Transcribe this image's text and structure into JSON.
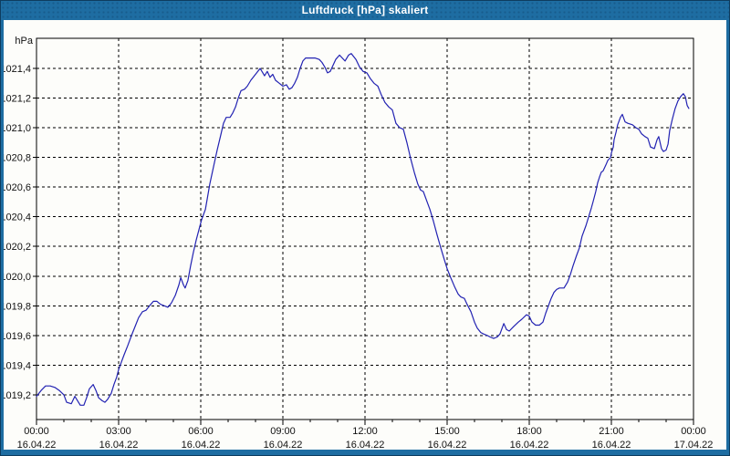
{
  "window": {
    "title": "Luftdruck [hPa] skaliert"
  },
  "colors": {
    "titlebar_bg": "#1e6da2",
    "window_border": "#0e3c5f",
    "plot_bg": "#fdfdfa",
    "grid_color": "#000000",
    "axis_color": "#000000",
    "line_color": "#2222b2",
    "label_color": "#111111",
    "title_text_color": "#ffffff"
  },
  "chart_data": {
    "type": "line",
    "title": "Luftdruck [hPa] skaliert",
    "y_unit_label": "hPa",
    "xlabel": "",
    "ylabel": "hPa",
    "grid": true,
    "legend": "none",
    "xlim_hours": [
      0,
      24
    ],
    "ylim": [
      1019.03,
      1021.6
    ],
    "x_minor_step_hours": 1,
    "x_major_step_hours": 3,
    "y_ticks": [
      1021.4,
      1021.2,
      1021.0,
      1020.8,
      1020.6,
      1020.4,
      1020.2,
      1020.0,
      1019.8,
      1019.6,
      1019.4,
      1019.2
    ],
    "y_tick_labels": [
      "1021,4",
      "1021,2",
      "1021,0",
      "1020,8",
      "1020,6",
      "1020,4",
      "1020,2",
      "1020,0",
      "1019,8",
      "1019,6",
      "1019,4",
      "1019,2"
    ],
    "x_ticks": [
      {
        "hour": 0,
        "time": "00:00",
        "date": "16.04.22"
      },
      {
        "hour": 3,
        "time": "03:00",
        "date": "16.04.22"
      },
      {
        "hour": 6,
        "time": "06:00",
        "date": "16.04.22"
      },
      {
        "hour": 9,
        "time": "09:00",
        "date": "16.04.22"
      },
      {
        "hour": 12,
        "time": "12:00",
        "date": "16.04.22"
      },
      {
        "hour": 15,
        "time": "15:00",
        "date": "16.04.22"
      },
      {
        "hour": 18,
        "time": "18:00",
        "date": "16.04.22"
      },
      {
        "hour": 21,
        "time": "21:00",
        "date": "16.04.22"
      },
      {
        "hour": 24,
        "time": "00:00",
        "date": "17.04.22"
      }
    ],
    "series": [
      {
        "name": "Luftdruck",
        "color": "#2222b2",
        "points": [
          [
            0.0,
            1019.19
          ],
          [
            0.17,
            1019.23
          ],
          [
            0.33,
            1019.26
          ],
          [
            0.5,
            1019.26
          ],
          [
            0.67,
            1019.25
          ],
          [
            0.83,
            1019.23
          ],
          [
            1.0,
            1019.2
          ],
          [
            1.1,
            1019.15
          ],
          [
            1.27,
            1019.14
          ],
          [
            1.4,
            1019.19
          ],
          [
            1.5,
            1019.16
          ],
          [
            1.6,
            1019.13
          ],
          [
            1.73,
            1019.13
          ],
          [
            1.83,
            1019.18
          ],
          [
            1.93,
            1019.24
          ],
          [
            2.07,
            1019.27
          ],
          [
            2.17,
            1019.23
          ],
          [
            2.27,
            1019.18
          ],
          [
            2.4,
            1019.16
          ],
          [
            2.5,
            1019.15
          ],
          [
            2.6,
            1019.17
          ],
          [
            2.73,
            1019.21
          ],
          [
            2.83,
            1019.27
          ],
          [
            2.93,
            1019.32
          ],
          [
            3.0,
            1019.37
          ],
          [
            3.1,
            1019.42
          ],
          [
            3.2,
            1019.47
          ],
          [
            3.33,
            1019.53
          ],
          [
            3.47,
            1019.6
          ],
          [
            3.6,
            1019.66
          ],
          [
            3.73,
            1019.72
          ],
          [
            3.87,
            1019.76
          ],
          [
            4.0,
            1019.77
          ],
          [
            4.13,
            1019.8
          ],
          [
            4.27,
            1019.83
          ],
          [
            4.4,
            1019.83
          ],
          [
            4.53,
            1019.81
          ],
          [
            4.67,
            1019.8
          ],
          [
            4.8,
            1019.79
          ],
          [
            4.93,
            1019.82
          ],
          [
            5.07,
            1019.87
          ],
          [
            5.2,
            1019.94
          ],
          [
            5.27,
            1019.99
          ],
          [
            5.37,
            1019.94
          ],
          [
            5.43,
            1019.92
          ],
          [
            5.53,
            1019.97
          ],
          [
            5.63,
            1020.07
          ],
          [
            5.73,
            1020.16
          ],
          [
            5.83,
            1020.24
          ],
          [
            5.93,
            1020.31
          ],
          [
            6.03,
            1020.38
          ],
          [
            6.17,
            1020.45
          ],
          [
            6.33,
            1020.62
          ],
          [
            6.47,
            1020.74
          ],
          [
            6.6,
            1020.85
          ],
          [
            6.73,
            1020.95
          ],
          [
            6.83,
            1021.03
          ],
          [
            6.93,
            1021.07
          ],
          [
            7.07,
            1021.07
          ],
          [
            7.17,
            1021.1
          ],
          [
            7.27,
            1021.14
          ],
          [
            7.37,
            1021.2
          ],
          [
            7.47,
            1021.25
          ],
          [
            7.6,
            1021.26
          ],
          [
            7.7,
            1021.28
          ],
          [
            7.83,
            1021.32
          ],
          [
            8.0,
            1021.36
          ],
          [
            8.17,
            1021.4
          ],
          [
            8.33,
            1021.35
          ],
          [
            8.43,
            1021.38
          ],
          [
            8.53,
            1021.34
          ],
          [
            8.63,
            1021.36
          ],
          [
            8.73,
            1021.32
          ],
          [
            8.87,
            1021.3
          ],
          [
            9.0,
            1021.28
          ],
          [
            9.13,
            1021.29
          ],
          [
            9.23,
            1021.26
          ],
          [
            9.33,
            1021.27
          ],
          [
            9.43,
            1021.3
          ],
          [
            9.53,
            1021.34
          ],
          [
            9.63,
            1021.4
          ],
          [
            9.73,
            1021.45
          ],
          [
            9.83,
            1021.47
          ],
          [
            10.0,
            1021.47
          ],
          [
            10.17,
            1021.47
          ],
          [
            10.33,
            1021.46
          ],
          [
            10.43,
            1021.44
          ],
          [
            10.53,
            1021.41
          ],
          [
            10.63,
            1021.37
          ],
          [
            10.73,
            1021.38
          ],
          [
            10.83,
            1021.42
          ],
          [
            10.93,
            1021.46
          ],
          [
            11.07,
            1021.49
          ],
          [
            11.17,
            1021.47
          ],
          [
            11.27,
            1021.45
          ],
          [
            11.4,
            1021.49
          ],
          [
            11.5,
            1021.5
          ],
          [
            11.67,
            1021.46
          ],
          [
            11.8,
            1021.41
          ],
          [
            11.93,
            1021.38
          ],
          [
            12.07,
            1021.37
          ],
          [
            12.2,
            1021.33
          ],
          [
            12.33,
            1021.3
          ],
          [
            12.47,
            1021.28
          ],
          [
            12.6,
            1021.22
          ],
          [
            12.73,
            1021.17
          ],
          [
            12.87,
            1021.14
          ],
          [
            13.0,
            1021.12
          ],
          [
            13.13,
            1021.03
          ],
          [
            13.27,
            1021.0
          ],
          [
            13.4,
            1020.99
          ],
          [
            13.53,
            1020.9
          ],
          [
            13.67,
            1020.79
          ],
          [
            13.8,
            1020.7
          ],
          [
            13.93,
            1020.62
          ],
          [
            14.03,
            1020.58
          ],
          [
            14.13,
            1020.57
          ],
          [
            14.27,
            1020.5
          ],
          [
            14.37,
            1020.45
          ],
          [
            14.5,
            1020.37
          ],
          [
            14.63,
            1020.28
          ],
          [
            14.77,
            1020.19
          ],
          [
            14.9,
            1020.11
          ],
          [
            15.0,
            1020.05
          ],
          [
            15.13,
            1019.99
          ],
          [
            15.27,
            1019.93
          ],
          [
            15.4,
            1019.88
          ],
          [
            15.5,
            1019.86
          ],
          [
            15.63,
            1019.85
          ],
          [
            15.73,
            1019.81
          ],
          [
            15.87,
            1019.76
          ],
          [
            16.0,
            1019.69
          ],
          [
            16.1,
            1019.65
          ],
          [
            16.23,
            1019.62
          ],
          [
            16.33,
            1019.61
          ],
          [
            16.47,
            1019.6
          ],
          [
            16.57,
            1019.59
          ],
          [
            16.7,
            1019.58
          ],
          [
            16.83,
            1019.59
          ],
          [
            16.93,
            1019.61
          ],
          [
            17.07,
            1019.68
          ],
          [
            17.17,
            1019.64
          ],
          [
            17.27,
            1019.63
          ],
          [
            17.43,
            1019.66
          ],
          [
            17.6,
            1019.69
          ],
          [
            17.73,
            1019.71
          ],
          [
            17.9,
            1019.74
          ],
          [
            18.0,
            1019.73
          ],
          [
            18.1,
            1019.69
          ],
          [
            18.23,
            1019.67
          ],
          [
            18.37,
            1019.67
          ],
          [
            18.5,
            1019.69
          ],
          [
            18.6,
            1019.75
          ],
          [
            18.7,
            1019.8
          ],
          [
            18.8,
            1019.85
          ],
          [
            18.9,
            1019.89
          ],
          [
            19.0,
            1019.91
          ],
          [
            19.1,
            1019.92
          ],
          [
            19.27,
            1019.92
          ],
          [
            19.4,
            1019.96
          ],
          [
            19.5,
            1020.01
          ],
          [
            19.6,
            1020.07
          ],
          [
            19.73,
            1020.14
          ],
          [
            19.83,
            1020.19
          ],
          [
            19.93,
            1020.27
          ],
          [
            20.07,
            1020.34
          ],
          [
            20.17,
            1020.4
          ],
          [
            20.27,
            1020.46
          ],
          [
            20.33,
            1020.5
          ],
          [
            20.43,
            1020.57
          ],
          [
            20.5,
            1020.63
          ],
          [
            20.57,
            1020.67
          ],
          [
            20.63,
            1020.7
          ],
          [
            20.7,
            1020.71
          ],
          [
            20.8,
            1020.75
          ],
          [
            20.87,
            1020.78
          ],
          [
            20.97,
            1020.8
          ],
          [
            21.0,
            1020.83
          ],
          [
            21.07,
            1020.87
          ],
          [
            21.1,
            1020.92
          ],
          [
            21.17,
            1020.97
          ],
          [
            21.23,
            1021.02
          ],
          [
            21.33,
            1021.07
          ],
          [
            21.4,
            1021.09
          ],
          [
            21.5,
            1021.04
          ],
          [
            21.6,
            1021.03
          ],
          [
            21.77,
            1021.02
          ],
          [
            21.9,
            1021.0
          ],
          [
            22.0,
            1020.99
          ],
          [
            22.1,
            1020.96
          ],
          [
            22.23,
            1020.94
          ],
          [
            22.33,
            1020.93
          ],
          [
            22.43,
            1020.87
          ],
          [
            22.57,
            1020.86
          ],
          [
            22.67,
            1020.92
          ],
          [
            22.73,
            1020.94
          ],
          [
            22.83,
            1020.86
          ],
          [
            22.9,
            1020.84
          ],
          [
            23.0,
            1020.85
          ],
          [
            23.07,
            1020.89
          ],
          [
            23.13,
            1020.98
          ],
          [
            23.23,
            1021.06
          ],
          [
            23.33,
            1021.13
          ],
          [
            23.43,
            1021.18
          ],
          [
            23.53,
            1021.21
          ],
          [
            23.63,
            1021.23
          ],
          [
            23.7,
            1021.21
          ],
          [
            23.77,
            1021.15
          ],
          [
            23.83,
            1021.13
          ]
        ]
      }
    ]
  }
}
